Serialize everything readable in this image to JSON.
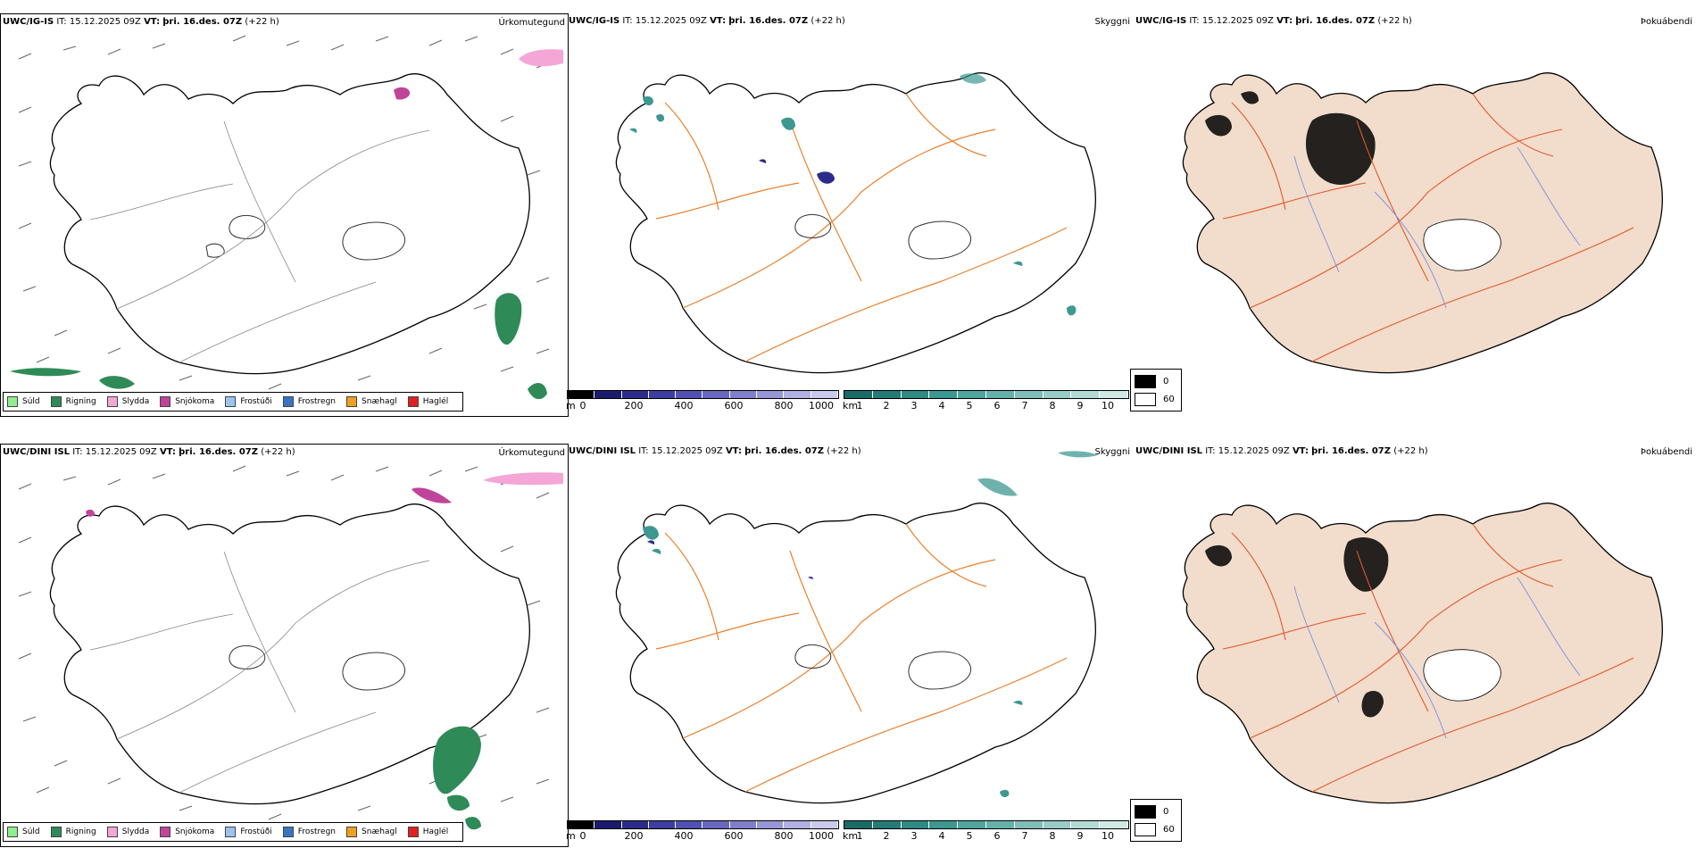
{
  "panels": {
    "igis_ptype": {
      "model": "UWC/IG-IS",
      "it_label": "IT:",
      "it_value": "15.12.2025 09Z",
      "vt_label": "VT:",
      "vt_value": "þri. 16.des. 07Z",
      "lead": "(+22 h)",
      "product": "Úrkomutegund"
    },
    "igis_cloud": {
      "model": "UWC/IG-IS",
      "it_label": "IT:",
      "it_value": "15.12.2025 09Z",
      "vt_label": "VT:",
      "vt_value": "þri. 16.des. 07Z",
      "lead": "(+22 h)",
      "product": "Skyggni"
    },
    "igis_fog": {
      "model": "UWC/IG-IS",
      "it_label": "IT:",
      "it_value": "15.12.2025 09Z",
      "vt_label": "VT:",
      "vt_value": "þri. 16.des. 07Z",
      "lead": "(+22 h)",
      "product": "Þokuábendi"
    },
    "dini_ptype": {
      "model": "UWC/DINI ISL",
      "it_label": "IT:",
      "it_value": "15.12.2025 09Z",
      "vt_label": "VT:",
      "vt_value": "þri. 16.des. 07Z",
      "lead": "(+22 h)",
      "product": "Úrkomutegund"
    },
    "dini_cloud": {
      "model": "UWC/DINI ISL",
      "it_label": "IT:",
      "it_value": "15.12.2025 09Z",
      "vt_label": "VT:",
      "vt_value": "þri. 16.des. 07Z",
      "lead": "(+22 h)",
      "product": "Skyggni"
    },
    "dini_fog": {
      "model": "UWC/DINI ISL",
      "it_label": "IT:",
      "it_value": "15.12.2025 09Z",
      "vt_label": "VT:",
      "vt_value": "þri. 16.des. 07Z",
      "lead": "(+22 h)",
      "product": "Þokuábendi"
    }
  },
  "ptype_legend": [
    {
      "label": "Súld",
      "color": "#90ee90"
    },
    {
      "label": "Rigning",
      "color": "#2e8b57"
    },
    {
      "label": "Slydda",
      "color": "#f4a6d7"
    },
    {
      "label": "Snjókoma",
      "color": "#c0449a"
    },
    {
      "label": "Frostúði",
      "color": "#9cc3f0"
    },
    {
      "label": "Frostregn",
      "color": "#3a75c4"
    },
    {
      "label": "Snæhagl",
      "color": "#f0a020"
    },
    {
      "label": "Haglél",
      "color": "#e02020"
    }
  ],
  "cloud_base_bar": {
    "unit": "m",
    "ticks": [
      "0",
      "200",
      "400",
      "600",
      "800",
      "1000"
    ],
    "colors": [
      "#000000",
      "#1a1a6e",
      "#2b2b8c",
      "#3d3da3",
      "#5151b3",
      "#6868c0",
      "#7f7fcc",
      "#9797d8",
      "#b0b0e3",
      "#cacaee"
    ]
  },
  "visibility_bar": {
    "unit": "km",
    "ticks": [
      "1",
      "2",
      "3",
      "4",
      "5",
      "6",
      "7",
      "8",
      "9",
      "10"
    ],
    "colors": [
      "#1a6b66",
      "#247a74",
      "#2f8a83",
      "#3d9891",
      "#50a59e",
      "#66b2ab",
      "#7fbfb8",
      "#99ccc6",
      "#b4dad5",
      "#d1e9e5"
    ]
  },
  "fog_legend": [
    {
      "label": "0",
      "color": "#000000"
    },
    {
      "label": "60",
      "color": "#ffffff"
    }
  ],
  "colors": {
    "land_fog": "#f2dccb",
    "roads": "#e8802c",
    "roads_fog": "#e05a2c",
    "rivers": "#7a8fe8",
    "coast": "#000000"
  }
}
